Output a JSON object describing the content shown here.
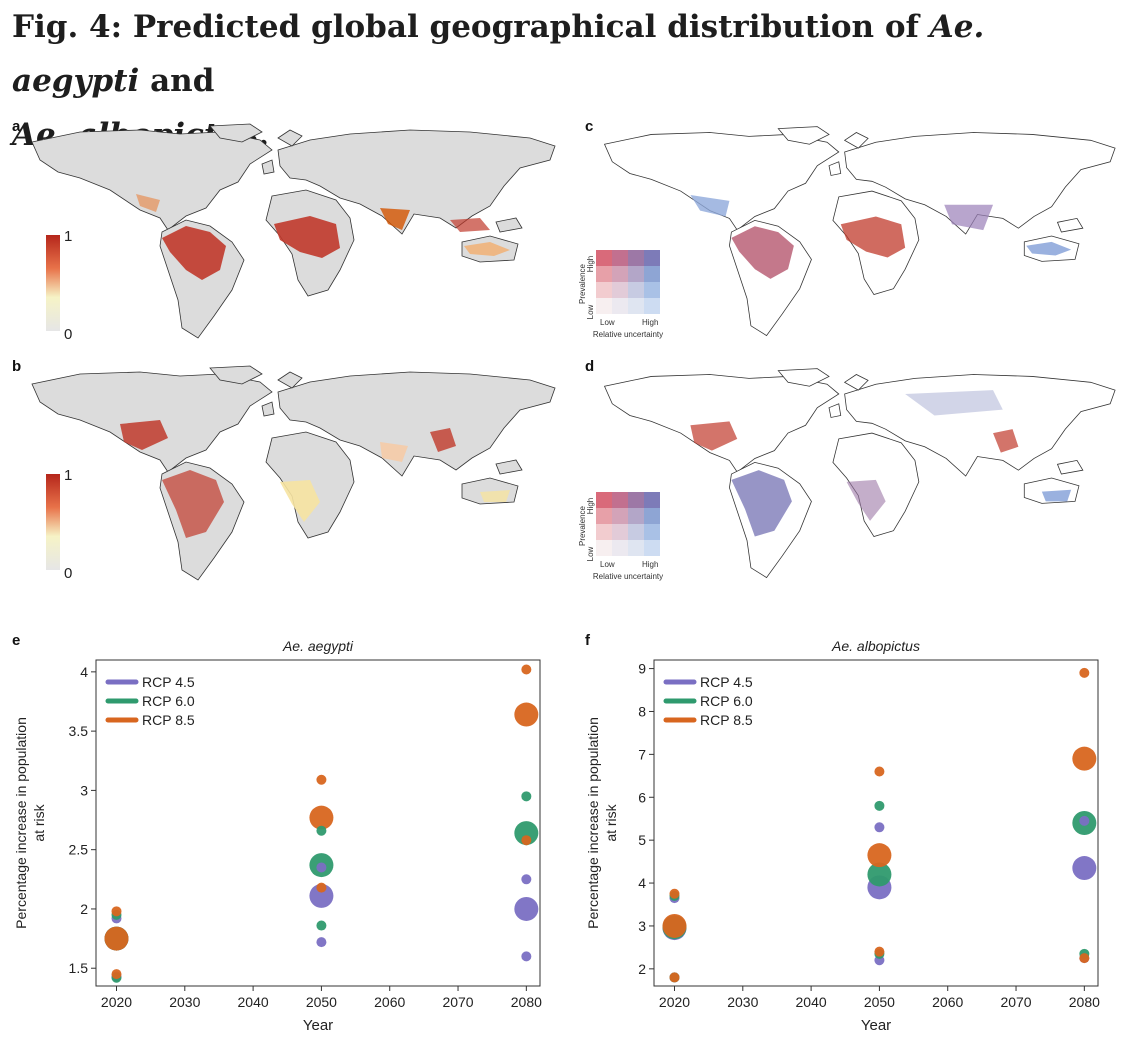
{
  "figure": {
    "title_prefix": "Fig. 4: Predicted global geographical distribution of ",
    "species_a": "Ae. aegypti",
    "title_and": " and",
    "species_b": "Ae. albopictus",
    "title_end": "."
  },
  "panels": {
    "a": {
      "label": "a",
      "cbar_max": "1",
      "cbar_min": "0"
    },
    "b": {
      "label": "b",
      "cbar_max": "1",
      "cbar_min": "0"
    },
    "c": {
      "label": "c",
      "y_axis": "Prevalence",
      "y_low": "Low",
      "y_high": "High",
      "x_low": "Low",
      "x_high": "High",
      "x_axis": "Relative uncertainty"
    },
    "d": {
      "label": "d",
      "y_axis": "Prevalence",
      "y_low": "Low",
      "y_high": "High",
      "x_low": "Low",
      "x_high": "High",
      "x_axis": "Relative uncertainty"
    },
    "e": {
      "label": "e"
    },
    "f": {
      "label": "f"
    }
  },
  "colors": {
    "land": "#dcdcdc",
    "rcp45": "#7a6fc3",
    "rcp60": "#2f9a6e",
    "rcp85": "#d8661f",
    "heat_high": "#b5261b",
    "heat_low": "#f6f3c6"
  },
  "chart_data": [
    {
      "type": "scatter",
      "title": "Ae. aegypti",
      "xlabel": "Year",
      "ylabel": "Percentage increase in population at risk",
      "xlim": [
        2017,
        2082
      ],
      "ylim": [
        1.35,
        4.1
      ],
      "xticks": [
        2020,
        2030,
        2040,
        2050,
        2060,
        2070,
        2080
      ],
      "yticks": [
        1.5,
        2,
        2.5,
        3,
        3.5,
        4
      ],
      "ytick_labels": [
        "1.5",
        "2",
        "2.5",
        "3",
        "3.5",
        "4"
      ],
      "legend_position": "top-left",
      "series": [
        {
          "name": "RCP 4.5",
          "color": "#7a6fc3",
          "points": [
            {
              "x": 2020,
              "y": 1.92,
              "size": "small"
            },
            {
              "x": 2020,
              "y": 1.75,
              "size": "large"
            },
            {
              "x": 2020,
              "y": 1.43,
              "size": "small"
            },
            {
              "x": 2050,
              "y": 2.35,
              "size": "small"
            },
            {
              "x": 2050,
              "y": 2.11,
              "size": "large"
            },
            {
              "x": 2050,
              "y": 1.72,
              "size": "small"
            },
            {
              "x": 2080,
              "y": 2.25,
              "size": "small"
            },
            {
              "x": 2080,
              "y": 2.0,
              "size": "large"
            },
            {
              "x": 2080,
              "y": 1.6,
              "size": "small"
            }
          ]
        },
        {
          "name": "RCP 6.0",
          "color": "#2f9a6e",
          "points": [
            {
              "x": 2020,
              "y": 1.95,
              "size": "small"
            },
            {
              "x": 2020,
              "y": 1.75,
              "size": "large"
            },
            {
              "x": 2020,
              "y": 1.42,
              "size": "small"
            },
            {
              "x": 2050,
              "y": 2.66,
              "size": "small"
            },
            {
              "x": 2050,
              "y": 2.37,
              "size": "large"
            },
            {
              "x": 2050,
              "y": 1.86,
              "size": "small"
            },
            {
              "x": 2080,
              "y": 2.95,
              "size": "small"
            },
            {
              "x": 2080,
              "y": 2.64,
              "size": "large"
            },
            {
              "x": 2080,
              "y": 2.58,
              "size": "small"
            }
          ]
        },
        {
          "name": "RCP 8.5",
          "color": "#d8661f",
          "points": [
            {
              "x": 2020,
              "y": 1.98,
              "size": "small"
            },
            {
              "x": 2020,
              "y": 1.75,
              "size": "large"
            },
            {
              "x": 2020,
              "y": 1.45,
              "size": "small"
            },
            {
              "x": 2050,
              "y": 3.09,
              "size": "small"
            },
            {
              "x": 2050,
              "y": 2.77,
              "size": "large"
            },
            {
              "x": 2050,
              "y": 2.18,
              "size": "small"
            },
            {
              "x": 2080,
              "y": 4.02,
              "size": "small"
            },
            {
              "x": 2080,
              "y": 3.64,
              "size": "large"
            },
            {
              "x": 2080,
              "y": 2.58,
              "size": "small"
            }
          ]
        }
      ]
    },
    {
      "type": "scatter",
      "title": "Ae. albopictus",
      "xlabel": "Year",
      "ylabel": "Percentage increase in population at risk",
      "xlim": [
        2017,
        2082
      ],
      "ylim": [
        1.6,
        9.2
      ],
      "xticks": [
        2020,
        2030,
        2040,
        2050,
        2060,
        2070,
        2080
      ],
      "yticks": [
        2,
        3,
        4,
        5,
        6,
        7,
        8,
        9
      ],
      "ytick_labels": [
        "2",
        "3",
        "4",
        "5",
        "6",
        "7",
        "8",
        "9"
      ],
      "legend_position": "top-left",
      "series": [
        {
          "name": "RCP 4.5",
          "color": "#7a6fc3",
          "points": [
            {
              "x": 2020,
              "y": 3.65,
              "size": "small"
            },
            {
              "x": 2020,
              "y": 2.95,
              "size": "large"
            },
            {
              "x": 2020,
              "y": 1.8,
              "size": "small"
            },
            {
              "x": 2050,
              "y": 5.3,
              "size": "small"
            },
            {
              "x": 2050,
              "y": 3.9,
              "size": "large"
            },
            {
              "x": 2050,
              "y": 2.2,
              "size": "small"
            },
            {
              "x": 2080,
              "y": 5.45,
              "size": "small"
            },
            {
              "x": 2080,
              "y": 4.35,
              "size": "large"
            },
            {
              "x": 2080,
              "y": 2.25,
              "size": "small"
            }
          ]
        },
        {
          "name": "RCP 6.0",
          "color": "#2f9a6e",
          "points": [
            {
              "x": 2020,
              "y": 3.7,
              "size": "small"
            },
            {
              "x": 2020,
              "y": 2.97,
              "size": "large"
            },
            {
              "x": 2020,
              "y": 1.8,
              "size": "small"
            },
            {
              "x": 2050,
              "y": 5.8,
              "size": "small"
            },
            {
              "x": 2050,
              "y": 4.2,
              "size": "large"
            },
            {
              "x": 2050,
              "y": 2.35,
              "size": "small"
            },
            {
              "x": 2080,
              "y": 5.4,
              "size": "large"
            },
            {
              "x": 2080,
              "y": 2.35,
              "size": "small"
            }
          ]
        },
        {
          "name": "RCP 8.5",
          "color": "#d8661f",
          "points": [
            {
              "x": 2020,
              "y": 3.75,
              "size": "small"
            },
            {
              "x": 2020,
              "y": 3.0,
              "size": "large"
            },
            {
              "x": 2020,
              "y": 1.8,
              "size": "small"
            },
            {
              "x": 2050,
              "y": 6.6,
              "size": "small"
            },
            {
              "x": 2050,
              "y": 4.65,
              "size": "large"
            },
            {
              "x": 2050,
              "y": 2.4,
              "size": "small"
            },
            {
              "x": 2080,
              "y": 8.9,
              "size": "small"
            },
            {
              "x": 2080,
              "y": 6.9,
              "size": "large"
            },
            {
              "x": 2080,
              "y": 2.25,
              "size": "small"
            }
          ]
        }
      ]
    }
  ]
}
